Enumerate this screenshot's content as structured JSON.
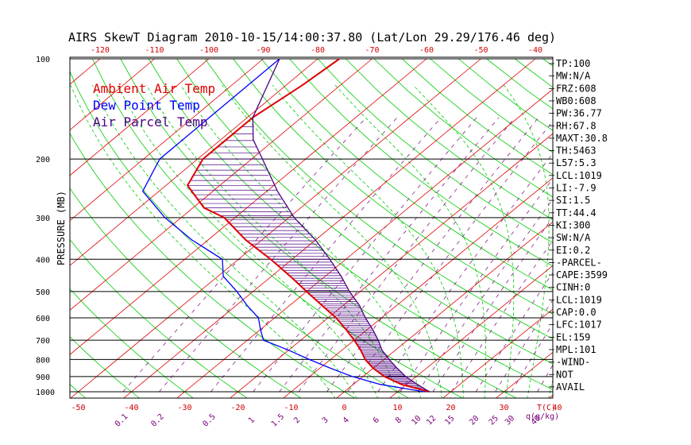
{
  "chart_data": {
    "type": "skew-t",
    "title": "AIRS SkewT Diagram 2010-10-15/14:00:37.80 (Lat/Lon 29.29/176.46 deg)",
    "ylabel": "PRESSURE (MB)",
    "xlabel": "T(C)",
    "mixing_ratio_label": "q(g/kg)",
    "pressure_levels": [
      1000,
      900,
      800,
      700,
      600,
      500,
      400,
      300,
      200,
      100
    ],
    "pressure_tick_labels": [
      "1000",
      "900",
      "800",
      "700",
      "600",
      "500",
      "400",
      "300",
      "200",
      "100"
    ],
    "top_temperature_ticks": [
      "-120",
      "-110",
      "-100",
      "-90",
      "-80",
      "-70",
      "-60",
      "-50",
      "-40"
    ],
    "bottom_temperature_ticks": [
      "-50",
      "-40",
      "-30",
      "-20",
      "-10",
      "0",
      "10",
      "20",
      "30",
      "40"
    ],
    "mixing_ratio_ticks": [
      "0.1",
      "0.2",
      "0.5",
      "1",
      "1.5",
      "2",
      "3",
      "4",
      "6",
      "8",
      "10",
      "12",
      "15",
      "20",
      "25",
      "30",
      "40"
    ],
    "legend": [
      {
        "label": "Ambient Air Temp",
        "color": "#e00000"
      },
      {
        "label": "Dew Point Temp",
        "color": "#0000ff"
      },
      {
        "label": "Air Parcel Temp",
        "color": "#4b0082"
      }
    ],
    "series": [
      {
        "name": "Ambient Air Temp",
        "color": "#e00000",
        "points": [
          [
            100,
            -76
          ],
          [
            120,
            -77
          ],
          [
            150,
            -79
          ],
          [
            175,
            -79
          ],
          [
            200,
            -79
          ],
          [
            240,
            -76
          ],
          [
            280,
            -68
          ],
          [
            300,
            -62
          ],
          [
            350,
            -53
          ],
          [
            400,
            -44
          ],
          [
            450,
            -36.5
          ],
          [
            500,
            -30
          ],
          [
            550,
            -24
          ],
          [
            600,
            -18.5
          ],
          [
            650,
            -14
          ],
          [
            700,
            -10
          ],
          [
            750,
            -6.5
          ],
          [
            800,
            -3.5
          ],
          [
            850,
            0
          ],
          [
            900,
            4
          ],
          [
            950,
            9
          ],
          [
            1000,
            16
          ]
        ]
      },
      {
        "name": "Dew Point Temp",
        "color": "#0000ff",
        "points": [
          [
            100,
            -87
          ],
          [
            150,
            -87
          ],
          [
            200,
            -87
          ],
          [
            250,
            -83
          ],
          [
            300,
            -73
          ],
          [
            350,
            -63
          ],
          [
            400,
            -53
          ],
          [
            450,
            -49
          ],
          [
            500,
            -43
          ],
          [
            550,
            -38
          ],
          [
            600,
            -33
          ],
          [
            650,
            -30
          ],
          [
            700,
            -27
          ],
          [
            750,
            -20
          ],
          [
            800,
            -14
          ],
          [
            850,
            -8
          ],
          [
            900,
            -2
          ],
          [
            950,
            5
          ],
          [
            1000,
            15
          ]
        ]
      },
      {
        "name": "Air Parcel Temp",
        "color": "#4b0082",
        "points": [
          [
            100,
            -87
          ],
          [
            150,
            -79
          ],
          [
            175,
            -74
          ],
          [
            200,
            -68
          ],
          [
            250,
            -58
          ],
          [
            300,
            -49
          ],
          [
            350,
            -40
          ],
          [
            400,
            -33
          ],
          [
            450,
            -27
          ],
          [
            500,
            -22
          ],
          [
            550,
            -17
          ],
          [
            600,
            -13
          ],
          [
            650,
            -9
          ],
          [
            700,
            -5.5
          ],
          [
            750,
            -2.5
          ],
          [
            800,
            1
          ],
          [
            850,
            4.5
          ],
          [
            900,
            8
          ],
          [
            950,
            12
          ],
          [
            1000,
            16
          ]
        ]
      }
    ]
  },
  "indices": [
    "TP:100",
    "MW:N/A",
    "FRZ:608",
    "WB0:608",
    "PW:36.77",
    "RH:67.8",
    "MAXT:30.8",
    "TH:5463",
    "L57:5.3",
    "LCL:1019",
    "LI:-7.9",
    "SI:1.5",
    "TT:44.4",
    "KI:300",
    "SW:N/A",
    "EI:0.2",
    "-PARCEL-",
    "CAPE:3599",
    "CINH:0",
    "LCL:1019",
    "CAP:0.0",
    "LFC:1017",
    "EL:159",
    "MPL:101",
    "-WIND-",
    "NOT",
    "AVAIL"
  ],
  "colors": {
    "isotherm": "#e00000",
    "dry_adiabat": "#00cc00",
    "moist_adiabat": "#00cc00",
    "mixing_ratio": "#7a007a",
    "hatch": "#4b0082",
    "frame": "#000000"
  }
}
